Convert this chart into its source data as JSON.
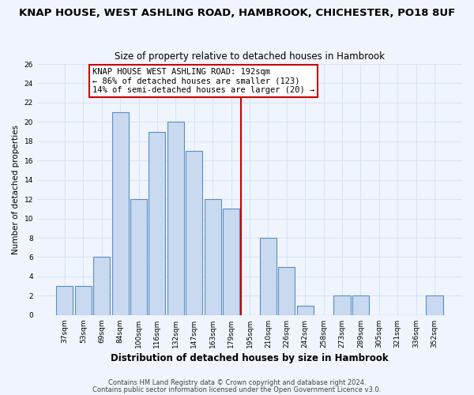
{
  "title": "KNAP HOUSE, WEST ASHLING ROAD, HAMBROOK, CHICHESTER, PO18 8UF",
  "subtitle": "Size of property relative to detached houses in Hambrook",
  "xlabel": "Distribution of detached houses by size in Hambrook",
  "ylabel": "Number of detached properties",
  "bar_labels": [
    "37sqm",
    "53sqm",
    "69sqm",
    "84sqm",
    "100sqm",
    "116sqm",
    "132sqm",
    "147sqm",
    "163sqm",
    "179sqm",
    "195sqm",
    "210sqm",
    "226sqm",
    "242sqm",
    "258sqm",
    "273sqm",
    "289sqm",
    "305sqm",
    "321sqm",
    "336sqm",
    "352sqm"
  ],
  "bar_values": [
    3,
    3,
    6,
    21,
    12,
    19,
    20,
    17,
    12,
    11,
    0,
    8,
    5,
    1,
    0,
    2,
    2,
    0,
    0,
    0,
    2
  ],
  "bar_color": "#c8d9f0",
  "bar_edge_color": "#5a8fc0",
  "property_index": 10,
  "vline_color": "#cc0000",
  "annotation_line1": "KNAP HOUSE WEST ASHLING ROAD: 192sqm",
  "annotation_line2": "← 86% of detached houses are smaller (123)",
  "annotation_line3": "14% of semi-detached houses are larger (20) →",
  "annotation_box_color": "#ffffff",
  "annotation_box_edge_color": "#cc0000",
  "ylim": [
    0,
    26
  ],
  "yticks": [
    0,
    2,
    4,
    6,
    8,
    10,
    12,
    14,
    16,
    18,
    20,
    22,
    24,
    26
  ],
  "footer1": "Contains HM Land Registry data © Crown copyright and database right 2024.",
  "footer2": "Contains public sector information licensed under the Open Government Licence v3.0.",
  "background_color": "#f0f4fc",
  "grid_color": "#d8e4f8",
  "title_fontsize": 9.5,
  "subtitle_fontsize": 8.5,
  "xlabel_fontsize": 8.5,
  "ylabel_fontsize": 7.5,
  "tick_fontsize": 6.5,
  "annotation_fontsize": 7.5,
  "footer_fontsize": 6.0
}
